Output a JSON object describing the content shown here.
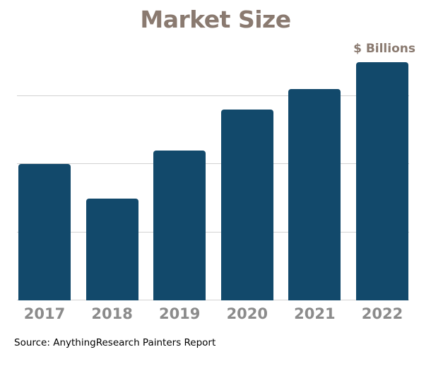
{
  "page": {
    "background": "#FFFFFF"
  },
  "chart_data": {
    "type": "bar",
    "title": "Market Size",
    "unit_label": "$ Billions",
    "categories": [
      "2017",
      "2018",
      "2019",
      "2020",
      "2021",
      "2022"
    ],
    "values": [
      2.0,
      1.5,
      2.2,
      2.8,
      3.1,
      3.5
    ],
    "value_units": "relative (no y-axis tick labels; gridline spacing = 1 unit)",
    "xlabel": "",
    "ylabel": "",
    "ylim": [
      0,
      3.53
    ],
    "gridline_units": [
      0,
      1,
      2,
      3
    ],
    "grid": "horizontal",
    "legend": "none",
    "colors": {
      "bar": "#12496B",
      "title": "#8A7A70",
      "unit_label": "#8A7A70",
      "category_labels": "#8B8B8B",
      "gridline": "#D2D2D2",
      "source_text": "#000000",
      "background": "#FFFFFF"
    }
  },
  "footer": {
    "source": "Source: AnythingResearch Painters Report"
  }
}
